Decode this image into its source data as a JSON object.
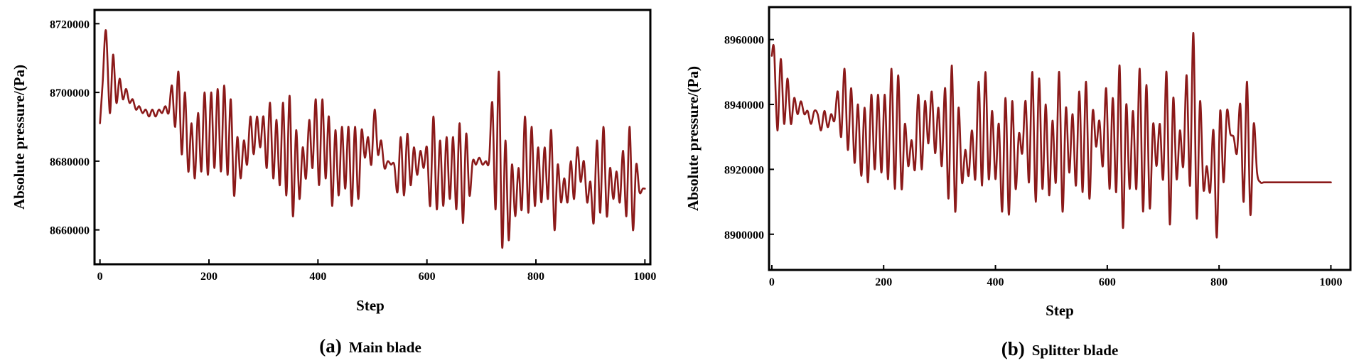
{
  "colors": {
    "series": "#8b1a1a",
    "axis": "#000000",
    "background": "#ffffff"
  },
  "chart_data": [
    {
      "type": "line",
      "panel_letter": "(a)",
      "panel_title": "Main blade",
      "xlabel": "Step",
      "ylabel": "Absolute pressure/(Pa)",
      "xlim": [
        -10,
        1010
      ],
      "ylim": [
        8650000,
        8724000
      ],
      "x_ticks": [
        0,
        200,
        400,
        600,
        800,
        1000
      ],
      "y_ticks": [
        8660000,
        8680000,
        8700000,
        8720000
      ],
      "x_tick_labels": [
        "0",
        "200",
        "400",
        "600",
        "800",
        "1000"
      ],
      "y_tick_labels": [
        "8660000",
        "8680000",
        "8700000",
        "8720000"
      ],
      "grid": false,
      "legend": "none",
      "series": [
        {
          "x": [
            0,
            5,
            11,
            18,
            24,
            30,
            36,
            42,
            48,
            54,
            60,
            66,
            72,
            78,
            84,
            90,
            96,
            102,
            108,
            114,
            120,
            126,
            132,
            138,
            144,
            150,
            156,
            162,
            168,
            174,
            180,
            186,
            192,
            198,
            204,
            210,
            216,
            222,
            228,
            234,
            240,
            246,
            252,
            258,
            264,
            270,
            276,
            282,
            288,
            294,
            300,
            306,
            312,
            318,
            324,
            330,
            336,
            342,
            348,
            354,
            360,
            366,
            372,
            378,
            384,
            390,
            396,
            402,
            408,
            414,
            420,
            426,
            432,
            438,
            444,
            450,
            456,
            462,
            468,
            474,
            480,
            486,
            492,
            498,
            504,
            510,
            516,
            522,
            528,
            534,
            540,
            546,
            552,
            558,
            564,
            570,
            576,
            582,
            588,
            594,
            600,
            606,
            612,
            618,
            624,
            630,
            636,
            642,
            648,
            654,
            660,
            666,
            672,
            678,
            684,
            690,
            696,
            702,
            708,
            714,
            720,
            726,
            732,
            738,
            744,
            750,
            756,
            762,
            768,
            774,
            780,
            786,
            792,
            798,
            804,
            810,
            816,
            822,
            828,
            834,
            840,
            846,
            852,
            858,
            864,
            870,
            876,
            882,
            888,
            894,
            900,
            906,
            912,
            918,
            924,
            930,
            936,
            942,
            948,
            954,
            960,
            966,
            972,
            978,
            984,
            990,
            996,
            1000
          ],
          "y": [
            8691000,
            8703000,
            8718000,
            8694000,
            8711000,
            8697000,
            8704000,
            8698000,
            8701000,
            8697000,
            8698000,
            8695000,
            8696000,
            8694000,
            8695000,
            8693000,
            8695000,
            8693000,
            8695000,
            8694000,
            8696000,
            8694000,
            8702000,
            8690000,
            8706000,
            8682000,
            8700000,
            8677000,
            8691000,
            8675000,
            8694000,
            8677000,
            8700000,
            8676000,
            8700000,
            8678000,
            8701000,
            8677000,
            8702000,
            8676000,
            8698000,
            8670000,
            8687000,
            8675000,
            8686000,
            8679000,
            8693000,
            8682000,
            8693000,
            8684000,
            8693000,
            8678000,
            8697000,
            8675000,
            8692000,
            8673000,
            8697000,
            8670000,
            8699000,
            8664000,
            8689000,
            8669000,
            8684000,
            8675000,
            8692000,
            8678000,
            8698000,
            8673000,
            8698000,
            8675000,
            8693000,
            8667000,
            8689000,
            8670000,
            8690000,
            8672000,
            8690000,
            8667000,
            8690000,
            8669000,
            8689000,
            8681000,
            8687000,
            8679000,
            8695000,
            8682000,
            8686000,
            8678000,
            8680000,
            8679000,
            8679000,
            8671000,
            8687000,
            8670000,
            8688000,
            8673000,
            8684000,
            8676000,
            8683000,
            8678000,
            8684000,
            8667000,
            8693000,
            8666000,
            8686000,
            8667000,
            8687000,
            8669000,
            8687000,
            8666000,
            8691000,
            8662000,
            8688000,
            8670000,
            8680000,
            8679000,
            8681000,
            8679000,
            8680000,
            8680000,
            8697000,
            8666000,
            8706000,
            8655000,
            8686000,
            8657000,
            8679000,
            8664000,
            8678000,
            8666000,
            8693000,
            8665000,
            8690000,
            8667000,
            8684000,
            8668000,
            8684000,
            8669000,
            8689000,
            8660000,
            8679000,
            8668000,
            8675000,
            8668000,
            8680000,
            8669000,
            8684000,
            8674000,
            8680000,
            8668000,
            8674000,
            8662000,
            8686000,
            8665000,
            8690000,
            8664000,
            8678000,
            8669000,
            8677000,
            8668000,
            8683000,
            8664000,
            8690000,
            8660000,
            8679000,
            8671000,
            8672000,
            8672000
          ]
        }
      ]
    },
    {
      "type": "line",
      "panel_letter": "(b)",
      "panel_title": "Splitter blade",
      "xlabel": "Step",
      "ylabel": "Absolute pressure/(Pa)",
      "xlim": [
        -5,
        1035
      ],
      "ylim": [
        8889000,
        8970000
      ],
      "x_ticks": [
        0,
        200,
        400,
        600,
        800,
        1000
      ],
      "y_ticks": [
        8900000,
        8920000,
        8940000,
        8960000
      ],
      "x_tick_labels": [
        "0",
        "200",
        "400",
        "600",
        "800",
        "1000"
      ],
      "y_tick_labels": [
        "8900000",
        "8920000",
        "8940000",
        "8960000"
      ],
      "grid": false,
      "legend": "none",
      "series": [
        {
          "x": [
            0,
            4,
            10,
            16,
            22,
            28,
            34,
            40,
            46,
            52,
            58,
            64,
            70,
            76,
            82,
            88,
            94,
            100,
            106,
            112,
            118,
            124,
            130,
            136,
            142,
            148,
            154,
            160,
            166,
            172,
            178,
            184,
            190,
            196,
            202,
            208,
            214,
            220,
            226,
            232,
            238,
            244,
            250,
            256,
            262,
            268,
            274,
            280,
            286,
            292,
            298,
            304,
            310,
            316,
            322,
            328,
            334,
            340,
            346,
            352,
            358,
            364,
            370,
            376,
            382,
            388,
            394,
            400,
            406,
            412,
            418,
            424,
            430,
            436,
            442,
            448,
            454,
            460,
            466,
            472,
            478,
            484,
            490,
            496,
            502,
            508,
            514,
            520,
            526,
            532,
            538,
            544,
            550,
            556,
            562,
            568,
            574,
            580,
            586,
            592,
            598,
            604,
            610,
            616,
            622,
            628,
            634,
            640,
            646,
            652,
            658,
            664,
            670,
            676,
            682,
            688,
            694,
            700,
            706,
            712,
            718,
            724,
            730,
            736,
            742,
            748,
            754,
            760,
            766,
            772,
            778,
            784,
            790,
            796,
            802,
            808,
            814,
            820,
            826,
            832,
            838,
            844,
            850,
            856,
            862,
            868,
            874,
            880,
            886,
            892,
            898,
            904,
            910,
            916,
            922,
            928,
            934,
            940,
            946,
            952,
            958,
            964,
            970,
            976,
            982,
            988,
            994,
            1000
          ],
          "y": [
            8955000,
            8957000,
            8932000,
            8954000,
            8934000,
            8948000,
            8934000,
            8942000,
            8937000,
            8941000,
            8937000,
            8938000,
            8934000,
            8938000,
            8937000,
            8932000,
            8938000,
            8933000,
            8937000,
            8935000,
            8944000,
            8930000,
            8951000,
            8926000,
            8945000,
            8922000,
            8940000,
            8918000,
            8939000,
            8916000,
            8943000,
            8920000,
            8943000,
            8919000,
            8943000,
            8917000,
            8951000,
            8914000,
            8949000,
            8914000,
            8934000,
            8921000,
            8929000,
            8920000,
            8943000,
            8920000,
            8941000,
            8928000,
            8944000,
            8925000,
            8939000,
            8921000,
            8945000,
            8911000,
            8952000,
            8907000,
            8939000,
            8916000,
            8926000,
            8918000,
            8932000,
            8917000,
            8947000,
            8915000,
            8950000,
            8917000,
            8938000,
            8917000,
            8934000,
            8907000,
            8942000,
            8906000,
            8941000,
            8914000,
            8931000,
            8925000,
            8941000,
            8916000,
            8950000,
            8910000,
            8948000,
            8914000,
            8940000,
            8912000,
            8935000,
            8916000,
            8950000,
            8907000,
            8939000,
            8919000,
            8937000,
            8915000,
            8944000,
            8913000,
            8947000,
            8911000,
            8938000,
            8927000,
            8935000,
            8921000,
            8945000,
            8914000,
            8942000,
            8913000,
            8952000,
            8902000,
            8940000,
            8914000,
            8938000,
            8914000,
            8951000,
            8907000,
            8946000,
            8908000,
            8934000,
            8921000,
            8934000,
            8917000,
            8950000,
            8903000,
            8942000,
            8917000,
            8932000,
            8921000,
            8949000,
            8915000,
            8962000,
            8905000,
            8941000,
            8914000,
            8921000,
            8913000,
            8932000,
            8899000,
            8938000,
            8916000,
            8938000,
            8931000,
            8930000,
            8925000,
            8940000,
            8910000,
            8947000,
            8906000,
            8934000,
            8919000,
            8916000,
            8916000,
            8916000,
            8916000,
            8916000,
            8916000,
            8916000,
            8916000,
            8916000,
            8916000,
            8916000,
            8916000,
            8916000,
            8916000,
            8916000,
            8916000,
            8916000,
            8916000,
            8916000,
            8916000,
            8916000,
            8916000
          ]
        }
      ]
    }
  ]
}
